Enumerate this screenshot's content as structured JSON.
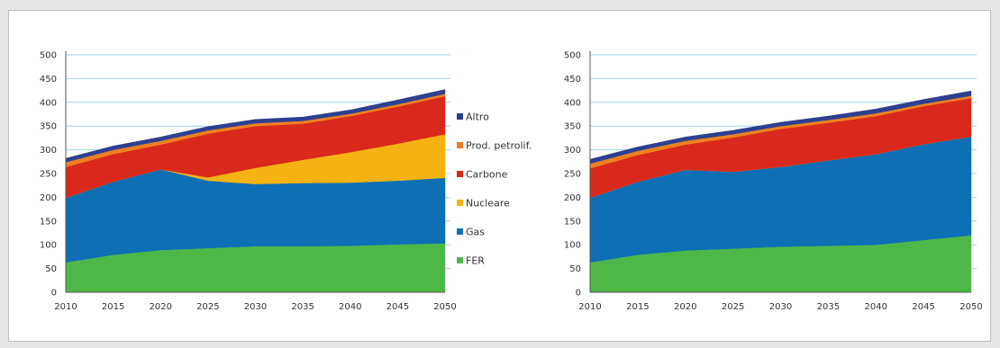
{
  "chart_data": [
    {
      "type": "area",
      "stacked": true,
      "title": "",
      "xlabel": "",
      "ylabel": "",
      "x": [
        2010,
        2015,
        2020,
        2025,
        2030,
        2035,
        2040,
        2045,
        2050
      ],
      "ylim": [
        0,
        500
      ],
      "yticks": [
        0,
        50,
        100,
        150,
        200,
        250,
        300,
        350,
        400,
        450,
        500
      ],
      "grid": true,
      "legend": "right",
      "series": [
        {
          "name": "FER",
          "color": "#4db848",
          "values": [
            63,
            79,
            89,
            93,
            97,
            97,
            98,
            101,
            103
          ]
        },
        {
          "name": "Gas",
          "color": "#0f6fb4",
          "values": [
            136,
            154,
            170,
            142,
            131,
            133,
            133,
            134,
            138
          ]
        },
        {
          "name": "Nucleare",
          "color": "#f5b313",
          "values": [
            0,
            0,
            0,
            7,
            34,
            49,
            64,
            78,
            92
          ]
        },
        {
          "name": "Carbone",
          "color": "#d9291c",
          "values": [
            65,
            58,
            52,
            92,
            88,
            76,
            76,
            78,
            80
          ]
        },
        {
          "name": "Prod. petrolif.",
          "color": "#ee8020",
          "values": [
            10,
            9,
            8,
            7,
            6,
            6,
            5,
            5,
            5
          ]
        },
        {
          "name": "Altro",
          "color": "#2e3f8f",
          "values": [
            8,
            8,
            8,
            8,
            8,
            8,
            8,
            9,
            9
          ]
        }
      ]
    },
    {
      "type": "area",
      "stacked": true,
      "title": "",
      "xlabel": "",
      "ylabel": "",
      "x": [
        2010,
        2015,
        2020,
        2025,
        2030,
        2035,
        2040,
        2045,
        2050
      ],
      "ylim": [
        0,
        500
      ],
      "yticks": [
        0,
        50,
        100,
        150,
        200,
        250,
        300,
        350,
        400,
        450,
        500
      ],
      "grid": true,
      "legend": "none",
      "series": [
        {
          "name": "FER",
          "color": "#4db848",
          "values": [
            63,
            79,
            88,
            92,
            96,
            98,
            100,
            110,
            120
          ]
        },
        {
          "name": "Gas",
          "color": "#0f6fb4",
          "values": [
            136,
            154,
            170,
            162,
            168,
            180,
            191,
            202,
            208
          ]
        },
        {
          "name": "Nucleare",
          "color": "#f5b313",
          "values": [
            0,
            0,
            0,
            0,
            0,
            0,
            0,
            0,
            0
          ]
        },
        {
          "name": "Carbone",
          "color": "#d9291c",
          "values": [
            62,
            56,
            53,
            72,
            80,
            79,
            80,
            80,
            81
          ]
        },
        {
          "name": "Prod. petrolif.",
          "color": "#ee8020",
          "values": [
            10,
            9,
            8,
            7,
            6,
            6,
            6,
            5,
            5
          ]
        },
        {
          "name": "Altro",
          "color": "#2e3f8f",
          "values": [
            9,
            8,
            8,
            8,
            8,
            8,
            9,
            9,
            10
          ]
        }
      ]
    }
  ]
}
